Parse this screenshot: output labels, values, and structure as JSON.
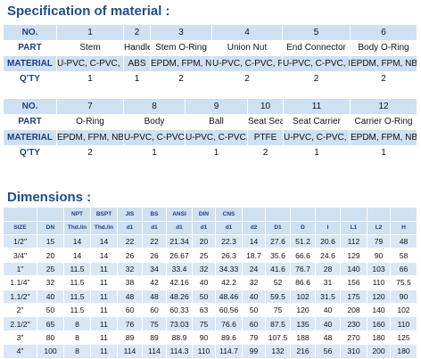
{
  "title": "Specification of material :",
  "material_tables": [
    {
      "rows": [
        {
          "label": "NO.",
          "cells": [
            "1",
            "2",
            "3",
            "4",
            "5",
            "6"
          ]
        },
        {
          "label": "PART",
          "cells": [
            "Stem",
            "Handle",
            "Stem O-Ring",
            "Union Nut",
            "End Connector",
            "Body O-Ring"
          ]
        },
        {
          "label": "MATERIAL",
          "cells": [
            "U-PVC, C-PVC, PP",
            "ABS",
            "EPDM, FPM, NBR",
            "U-PVC, C-PVC, PP",
            "U-PVC, C-PVC, PP",
            "EPDM, FPM, NBR"
          ]
        },
        {
          "label": "Q'TY",
          "cells": [
            "1",
            "1",
            "2",
            "2",
            "2",
            "2"
          ]
        }
      ]
    },
    {
      "rows": [
        {
          "label": "NO.",
          "cells": [
            "7",
            "8",
            "9",
            "10",
            "11",
            "12"
          ]
        },
        {
          "label": "PART",
          "cells": [
            "O-Ring",
            "Body",
            "Ball",
            "Seat Seal",
            "Seat Carrier",
            "Carrier O-Ring"
          ]
        },
        {
          "label": "MATERIAL",
          "cells": [
            "EPDM, FPM, NBR",
            "U-PVC, C-PVC, PP",
            "U-PVC, C-PVC, PP",
            "PTFE",
            "U-PVC, C-PVC, PP",
            "EPDM, FPM, NBR"
          ]
        },
        {
          "label": "Q'TY",
          "cells": [
            "2",
            "1",
            "1",
            "2",
            "1",
            "1"
          ]
        }
      ]
    }
  ],
  "dimensions_title": "Dimensions :",
  "dimensions": {
    "header_top": [
      "NPT",
      "BSPT",
      "JIS",
      "BS",
      "ANSI",
      "DIN",
      "CNS"
    ],
    "header_bottom": [
      "SIZE",
      "DN",
      "Thd./in",
      "Thd./in",
      "d1",
      "d1",
      "d1",
      "d1",
      "d1",
      "d2",
      "D1",
      "D",
      "I",
      "L1",
      "L2",
      "H"
    ],
    "rows": [
      [
        "1/2\"",
        "15",
        "14",
        "14",
        "22",
        "22",
        "21.34",
        "20",
        "22.3",
        "14",
        "27.6",
        "51.2",
        "20.6",
        "112",
        "79",
        "48"
      ],
      [
        "3/4\"",
        "20",
        "14",
        "14",
        "26",
        "26",
        "26.67",
        "25",
        "26.3",
        "18.7",
        "35.6",
        "66.6",
        "24.6",
        "129",
        "90",
        "58"
      ],
      [
        "1\"",
        "25",
        "11.5",
        "11",
        "32",
        "34",
        "33.4",
        "32",
        "34.33",
        "24",
        "41.6",
        "76.7",
        "28",
        "140",
        "103",
        "66"
      ],
      [
        "1.1/4\"",
        "32",
        "11.5",
        "11",
        "38",
        "42",
        "42.16",
        "40",
        "42.2",
        "32",
        "52",
        "86.6",
        "31",
        "156",
        "110",
        "75.5"
      ],
      [
        "1.1/2\"",
        "40",
        "11.5",
        "11",
        "48",
        "48",
        "48.26",
        "50",
        "48.46",
        "40",
        "59.5",
        "102",
        "31.5",
        "175",
        "120",
        "90"
      ],
      [
        "2\"",
        "50",
        "11.5",
        "11",
        "60",
        "60",
        "60.33",
        "63",
        "60.56",
        "50",
        "75",
        "120",
        "40",
        "208",
        "140",
        "102"
      ],
      [
        "2.1/2\"",
        "65",
        "8",
        "11",
        "76",
        "75",
        "73.03",
        "75",
        "76.6",
        "60",
        "87.5",
        "135",
        "40",
        "230",
        "160",
        "110"
      ],
      [
        "3\"",
        "80",
        "8",
        "11",
        "89",
        "89",
        "88.9",
        "90",
        "89.6",
        "79",
        "107.5",
        "188",
        "48",
        "270",
        "180",
        "125"
      ],
      [
        "4\"",
        "100",
        "8",
        "11",
        "114",
        "114",
        "114.3",
        "110",
        "114.7",
        "99",
        "132",
        "216",
        "56",
        "310",
        "200",
        "180"
      ]
    ]
  }
}
